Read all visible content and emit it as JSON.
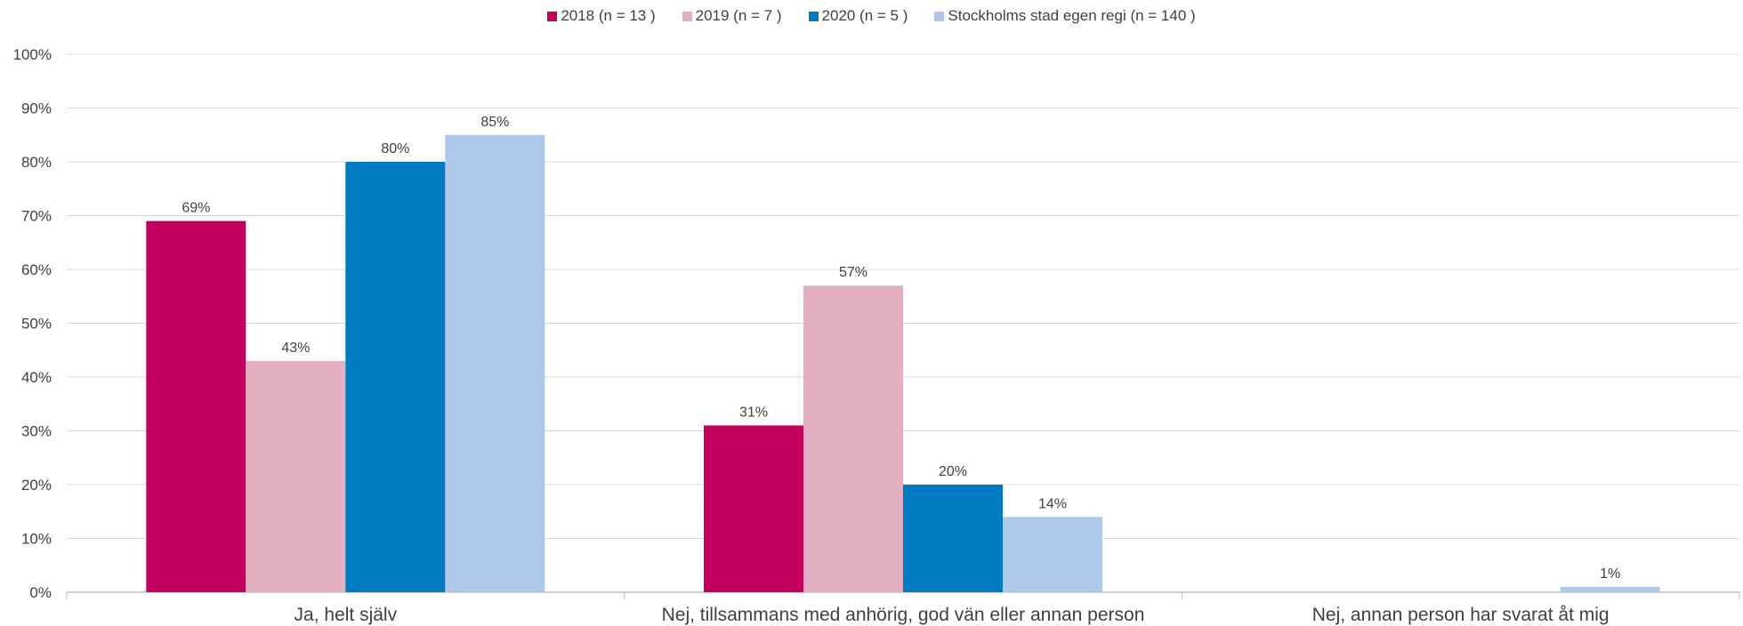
{
  "chart_data": {
    "type": "bar",
    "title": "",
    "xlabel": "",
    "ylabel": "",
    "categories": [
      "Ja, helt själv",
      "Nej, tillsammans med anhörig, god vän eller annan person",
      "Nej, annan person har svarat åt mig"
    ],
    "series": [
      {
        "name": "2018 (n = 13 )",
        "color": "#c4005f",
        "values": [
          69,
          31,
          null
        ],
        "labels": [
          "69%",
          "31%",
          ""
        ]
      },
      {
        "name": "2019 (n = 7 )",
        "color": "#e3b0c2",
        "values": [
          43,
          57,
          null
        ],
        "labels": [
          "43%",
          "57%",
          ""
        ]
      },
      {
        "name": "2020 (n = 5 )",
        "color": "#007bc2",
        "values": [
          80,
          20,
          null
        ],
        "labels": [
          "80%",
          "20%",
          ""
        ]
      },
      {
        "name": "Stockholms stad egen regi (n = 140 )",
        "color": "#adc8ea",
        "values": [
          85,
          14,
          1
        ],
        "labels": [
          "85%",
          "14%",
          "1%"
        ]
      }
    ],
    "ylim": [
      0,
      100
    ],
    "yticks": [
      "0%",
      "10%",
      "20%",
      "30%",
      "40%",
      "50%",
      "60%",
      "70%",
      "80%",
      "90%",
      "100%"
    ],
    "grid": true,
    "legend_position": "top"
  }
}
